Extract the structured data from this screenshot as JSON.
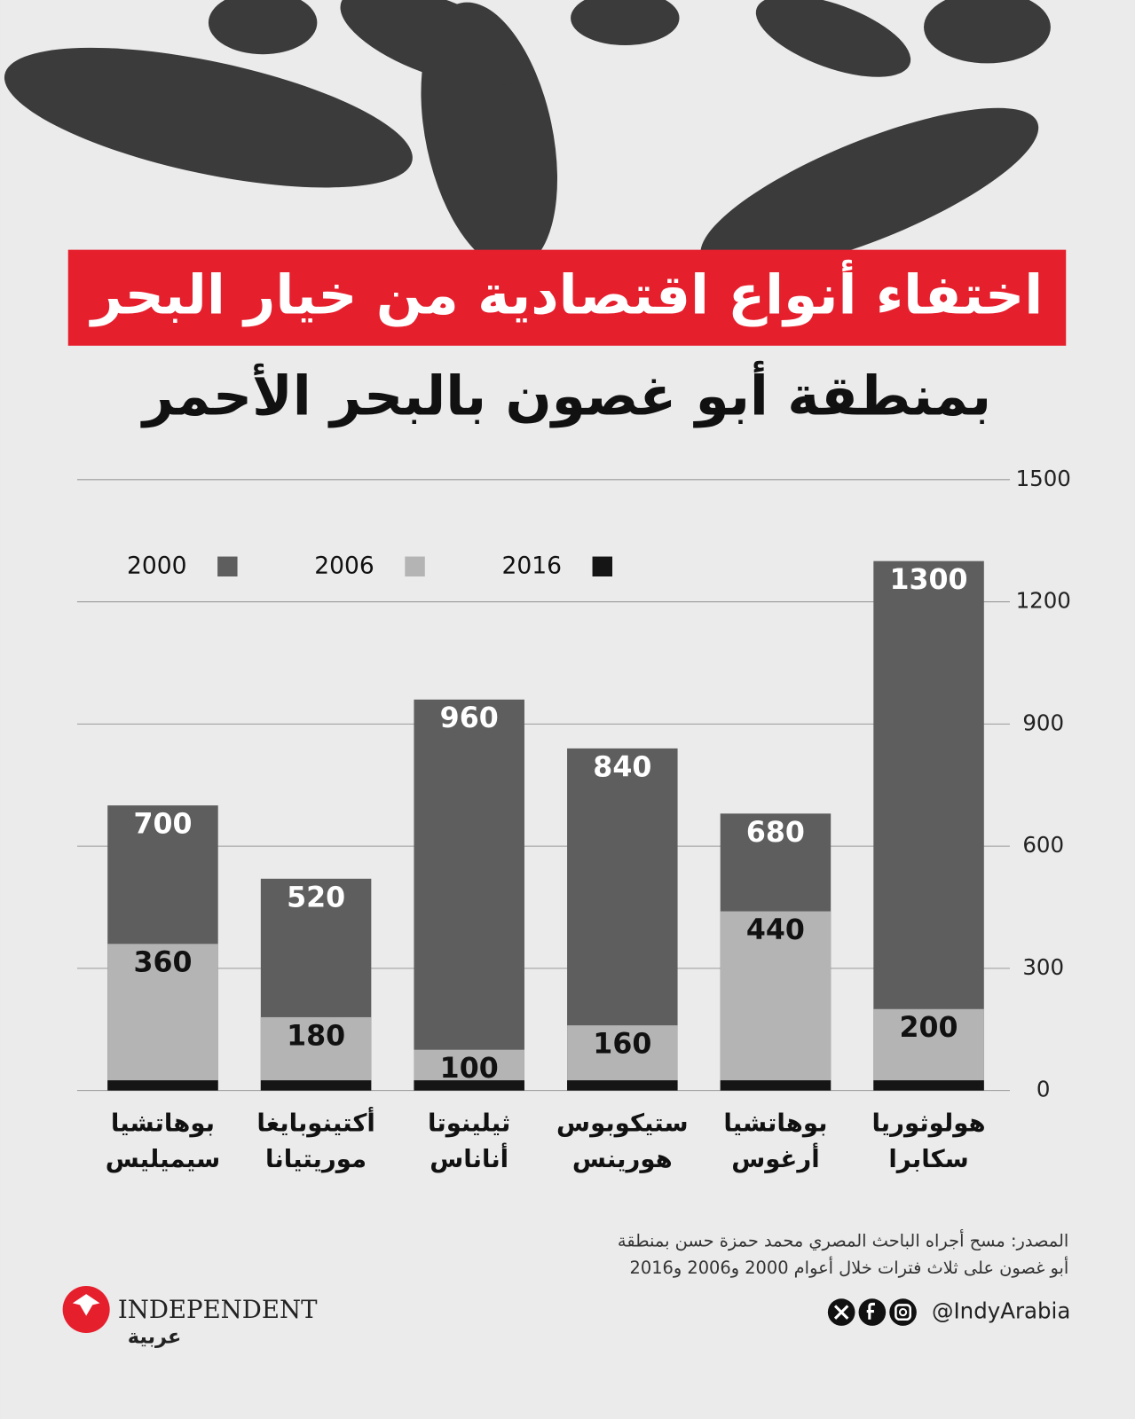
{
  "chart_data": {
    "type": "bar",
    "title": "اختفاء أنواع اقتصادية من خيار البحر",
    "subtitle": "بمنطقة أبو غصون بالبحر الأحمر",
    "categories": [
      [
        "بوهاتشيا",
        "سيميليس"
      ],
      [
        "أكتينوبايغا",
        "موريتيانا"
      ],
      [
        "ثيلينوتا",
        "أناناس"
      ],
      [
        "ستيكوبوس",
        "هورينس"
      ],
      [
        "بوهاتشيا",
        "أرغوس"
      ],
      [
        "هولوثوريا",
        "سكابرا"
      ]
    ],
    "series": [
      {
        "name": "2000",
        "color": "#5e5e5e",
        "label_color": "#ffffff",
        "show_labels": true,
        "values": [
          700,
          520,
          960,
          840,
          680,
          1300
        ]
      },
      {
        "name": "2006",
        "color": "#b4b4b4",
        "label_color": "#111111",
        "show_labels": true,
        "values": [
          360,
          180,
          100,
          160,
          440,
          200
        ]
      },
      {
        "name": "2016",
        "color": "#151515",
        "label_color": "#111111",
        "show_labels": false,
        "values": [
          25,
          25,
          25,
          25,
          25,
          25
        ]
      }
    ],
    "ylim": [
      0,
      1500
    ],
    "yticks": [
      0,
      300,
      600,
      900,
      1200,
      1500
    ],
    "grid": true,
    "y_axis_side": "right",
    "legend": "top-left",
    "source": [
      "المصدر: مسح أجراه الباحث المصري محمد حمزة حسن بمنطقة",
      "أبو غصون على ثلاث فترات خلال أعوام 2000 و2006 و2016"
    ],
    "handle": "@IndyArabia",
    "logo": {
      "name": "INDEPENDENT",
      "sub": "عربية"
    }
  }
}
